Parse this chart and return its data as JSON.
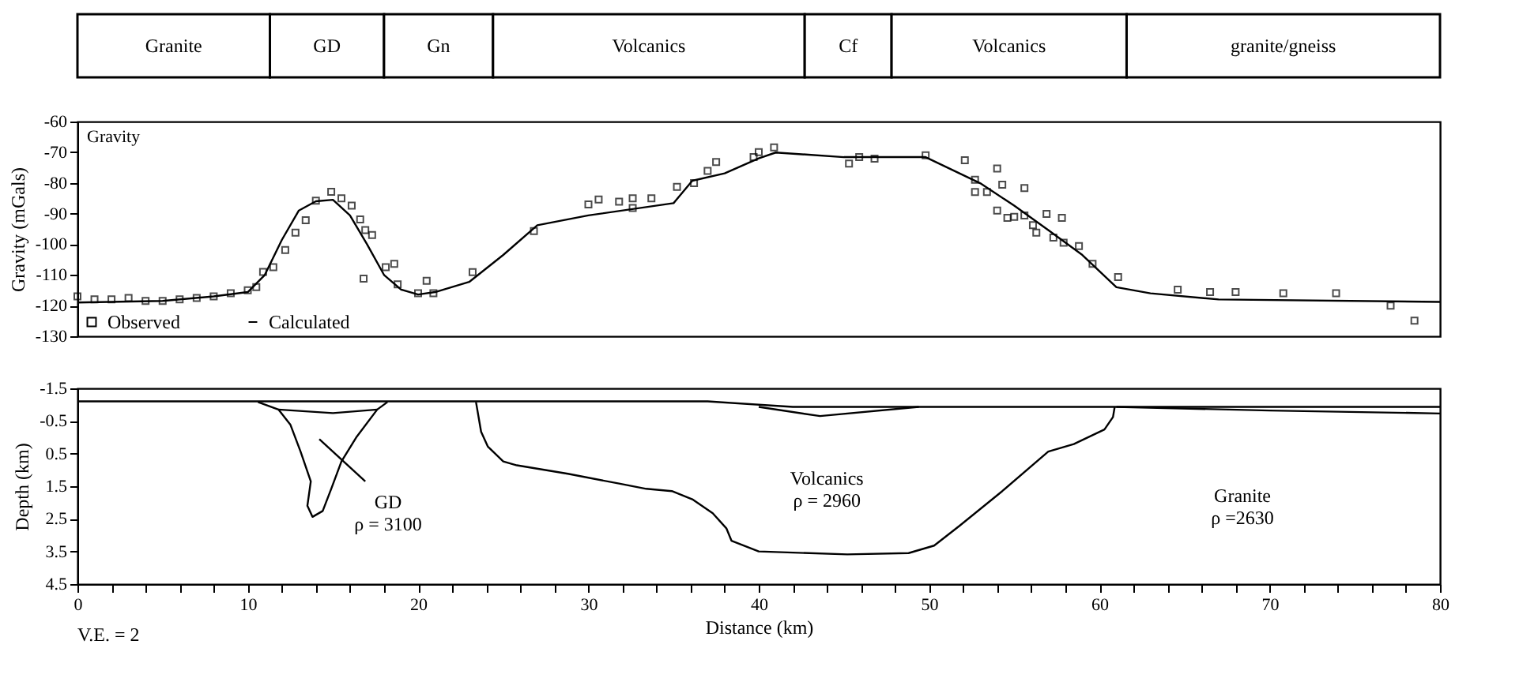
{
  "chart_data": [
    {
      "type": "bar",
      "orientation": "horizontal",
      "stacked": true,
      "categories": [
        null
      ],
      "xlim": [
        0,
        80
      ],
      "tick_labels": false,
      "legend": false,
      "series": [
        {
          "name": "Granite",
          "color": "#ffffff",
          "values": [
            11.3
          ]
        },
        {
          "name": "GD",
          "color": "#ffffff",
          "values": [
            6.7
          ]
        },
        {
          "name": "Gn",
          "color": "#ffffff",
          "values": [
            6.4
          ]
        },
        {
          "name": "Volcanics",
          "color": "#ffffff",
          "values": [
            18.3
          ]
        },
        {
          "name": "Cf",
          "color": "#ffffff",
          "values": [
            5.1
          ]
        },
        {
          "name": "Volcanics",
          "color": "#ffffff",
          "values": [
            13.8
          ]
        },
        {
          "name": "granite/gneiss",
          "color": "#ffffff",
          "values": [
            18.4
          ]
        }
      ]
    },
    {
      "type": "scatter",
      "title": "Gravity",
      "ylabel": "Gravity (mGals)",
      "xlim": [
        0,
        80
      ],
      "ylim": [
        -130,
        -60
      ],
      "yticks": [
        -130,
        -120,
        -110,
        -100,
        -90,
        -80,
        -70,
        -60
      ],
      "tick_labels": "y",
      "legend": "bottom left",
      "marker": "square",
      "grid": false,
      "series": [
        {
          "name": "Observed",
          "type": "scatter",
          "color": "#000000",
          "x": [
            0,
            1,
            2,
            3,
            4,
            5,
            6,
            7,
            8,
            9,
            10,
            10.5,
            10.9,
            11.5,
            12.2,
            12.8,
            13.4,
            14.0,
            14.9,
            15.5,
            16.1,
            16.6,
            16.9,
            17.3,
            16.8,
            18.1,
            18.6,
            18.8,
            20.0,
            20.5,
            20.9,
            23.2,
            26.8,
            30.0,
            30.6,
            31.8,
            32.6,
            32.6,
            33.7,
            35.2,
            36.2,
            37,
            37.5,
            39.7,
            40,
            40.9,
            45.3,
            45.9,
            46.8,
            49.8,
            52.1,
            52.7,
            52.7,
            53.4,
            54,
            54.3,
            55.6,
            54,
            54.6,
            55.0,
            55.6,
            56.1,
            56.3,
            56.9,
            57.3,
            57.8,
            57.9,
            58.8,
            59.6,
            61.1,
            64.6,
            66.5,
            68,
            70.8,
            73.9,
            77.1,
            78.5
          ],
          "values": [
            -117,
            -118,
            -118,
            -117.5,
            -118.5,
            -118.5,
            -118,
            -117.5,
            -117,
            -116,
            -115,
            -114,
            -109,
            -107.5,
            -101.9,
            -96.2,
            -92.2,
            -85.8,
            -82.9,
            -85,
            -87.4,
            -91.9,
            -95.4,
            -97,
            -111.2,
            -107.5,
            -106.4,
            -113.1,
            -116,
            -111.9,
            -116,
            -109.1,
            -95.7,
            -87,
            -85.4,
            -86.1,
            -85,
            -88.2,
            -85,
            -81.3,
            -80.1,
            -76.1,
            -73.2,
            -71.6,
            -70,
            -68.4,
            -73.7,
            -71.6,
            -72.1,
            -71,
            -72.6,
            -79,
            -83,
            -83,
            -75.3,
            -80.6,
            -81.7,
            -89,
            -91.4,
            -91.1,
            -90.6,
            -93.8,
            -96.2,
            -90.1,
            -97.8,
            -91.4,
            -99.5,
            -100.6,
            -106.4,
            -110.7,
            -114.8,
            -115.6,
            -115.6,
            -116,
            -116,
            -120,
            -124.9
          ]
        },
        {
          "name": "Calculated",
          "type": "line",
          "marker": "none",
          "color": "#000000",
          "x": [
            0,
            5,
            8,
            10,
            11,
            12,
            13,
            14,
            15,
            16,
            17,
            18,
            19,
            20,
            21,
            23,
            25,
            27,
            30,
            35,
            36.1,
            38,
            40,
            41,
            45,
            49.8,
            53,
            55,
            57,
            59,
            61,
            63,
            67,
            80
          ],
          "values": [
            -119,
            -118.5,
            -117,
            -115.6,
            -110,
            -98.6,
            -89,
            -86,
            -85.5,
            -90.6,
            -100,
            -110,
            -114.8,
            -116.4,
            -115.6,
            -112.3,
            -103.5,
            -93.8,
            -90.6,
            -86.6,
            -79.3,
            -76.9,
            -72,
            -70.1,
            -71.6,
            -71.6,
            -80.1,
            -87.4,
            -95.4,
            -103.5,
            -114,
            -116,
            -118,
            -118.8
          ]
        }
      ]
    },
    {
      "type": "line",
      "xlabel": "Distance (km)",
      "ylabel": "Depth (km)",
      "xlim": [
        0,
        80
      ],
      "ylim": [
        4.5,
        -1.5
      ],
      "xticks": [
        0,
        {
          "value": 2,
          "label": null
        },
        {
          "value": 4,
          "label": null
        },
        {
          "value": 6,
          "label": null
        },
        {
          "value": 8,
          "label": null
        },
        10,
        {
          "value": 12,
          "label": null
        },
        {
          "value": 14,
          "label": null
        },
        {
          "value": 16,
          "label": null
        },
        {
          "value": 18,
          "label": null
        },
        20,
        {
          "value": 22,
          "label": null
        },
        {
          "value": 24,
          "label": null
        },
        {
          "value": 26,
          "label": null
        },
        {
          "value": 28,
          "label": null
        },
        30,
        {
          "value": 32,
          "label": null
        },
        {
          "value": 34,
          "label": null
        },
        {
          "value": 36,
          "label": null
        },
        {
          "value": 38,
          "label": null
        },
        40,
        {
          "value": 42,
          "label": null
        },
        {
          "value": 44,
          "label": null
        },
        {
          "value": 46,
          "label": null
        },
        {
          "value": 48,
          "label": null
        },
        50,
        {
          "value": 52,
          "label": null
        },
        {
          "value": 54,
          "label": null
        },
        {
          "value": 56,
          "label": null
        },
        {
          "value": 58,
          "label": null
        },
        60,
        {
          "value": 62,
          "label": null
        },
        {
          "value": 64,
          "label": null
        },
        {
          "value": 66,
          "label": null
        },
        {
          "value": 68,
          "label": null
        },
        70,
        {
          "value": 72,
          "label": null
        },
        {
          "value": 74,
          "label": null
        },
        {
          "value": 76,
          "label": null
        },
        {
          "value": 78,
          "label": null
        },
        80
      ],
      "yticks": [
        -1.5,
        -0.5,
        0.5,
        1.5,
        2.5,
        3.5,
        4.5
      ],
      "grid": false,
      "line_style": "solid",
      "annotations": [
        "GD\nρ = 3100",
        "Volcanics\nρ = 2960",
        "Granite\nρ =2630",
        "V.E. = 2"
      ],
      "series": [
        {
          "color": "#000000",
          "x": [
            0,
            37,
            42,
            80
          ],
          "values": [
            -1.1,
            -1.1,
            -0.93,
            -0.93
          ]
        },
        {
          "color": "#000000",
          "x": [
            61,
            70,
            80
          ],
          "values": [
            -0.93,
            -0.82,
            -0.73
          ]
        },
        {
          "color": "#000000",
          "x": [
            10.6,
            11.8,
            12.5,
            13.1,
            13.7,
            13.5,
            13.8,
            14.4,
            14.9,
            15.5,
            16.4,
            17.6,
            18.2
          ],
          "values": [
            -1.08,
            -0.85,
            -0.39,
            0.44,
            1.35,
            2.1,
            2.44,
            2.26,
            1.58,
            0.74,
            -0.02,
            -0.85,
            -1.08
          ]
        },
        {
          "color": "#000000",
          "x": [
            11.8,
            15,
            17.6
          ],
          "values": [
            -0.85,
            -0.74,
            -0.85
          ]
        },
        {
          "color": "#000000",
          "x": [
            14.2,
            16.9
          ],
          "values": [
            0.06,
            1.35
          ]
        },
        {
          "color": "#000000",
          "x": [
            23.4,
            23.7,
            24.1,
            25,
            25.8,
            28.8,
            31.8,
            33.4,
            34.9,
            36.1,
            37.3,
            38.1,
            38.4,
            40,
            45.2,
            48.8,
            50.3,
            51.8,
            54.3,
            57,
            58.5,
            60.3,
            60.8,
            60.9
          ],
          "values": [
            -1.08,
            -0.17,
            0.29,
            0.74,
            0.86,
            1.12,
            1.42,
            1.58,
            1.65,
            1.9,
            2.33,
            2.79,
            3.17,
            3.5,
            3.59,
            3.55,
            3.32,
            2.71,
            1.65,
            0.44,
            0.21,
            -0.24,
            -0.62,
            -0.93
          ]
        },
        {
          "color": "#000000",
          "x": [
            40,
            43.6,
            49.4
          ],
          "values": [
            -0.93,
            -0.65,
            -0.93
          ]
        }
      ]
    }
  ]
}
